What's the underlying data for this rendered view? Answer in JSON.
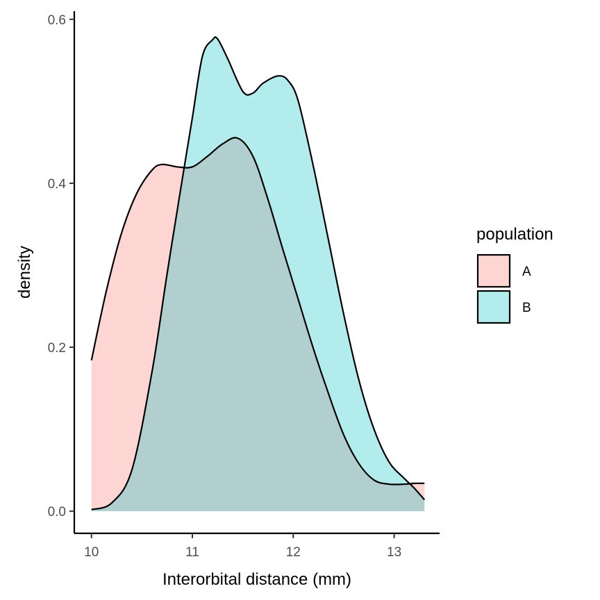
{
  "chart_data": {
    "type": "area",
    "subtype": "density",
    "title": "",
    "xlabel": "Interorbital distance (mm)",
    "ylabel": "density",
    "xlim": [
      9.83,
      13.45
    ],
    "ylim": [
      -0.027,
      0.61
    ],
    "x_ticks": [
      10,
      11,
      12,
      13
    ],
    "y_ticks": [
      0.0,
      0.2,
      0.4,
      0.6
    ],
    "x_tick_labels": [
      "10",
      "11",
      "12",
      "13"
    ],
    "y_tick_labels": [
      "0.0",
      "0.2",
      "0.4",
      "0.6"
    ],
    "grid": false,
    "legend": {
      "title": "population",
      "position": "right"
    },
    "series": [
      {
        "name": "A",
        "fill": "#f8766d",
        "fill_opacity": 0.3,
        "x": [
          10.0,
          10.15,
          10.3,
          10.45,
          10.6,
          10.7,
          10.85,
          11.0,
          11.15,
          11.3,
          11.45,
          11.6,
          11.75,
          11.9,
          12.05,
          12.2,
          12.35,
          12.5,
          12.65,
          12.8,
          12.95,
          13.1,
          13.2,
          13.3
        ],
        "y": [
          0.184,
          0.27,
          0.34,
          0.388,
          0.416,
          0.423,
          0.42,
          0.42,
          0.433,
          0.448,
          0.455,
          0.433,
          0.38,
          0.318,
          0.258,
          0.198,
          0.143,
          0.093,
          0.058,
          0.038,
          0.033,
          0.033,
          0.034,
          0.034
        ]
      },
      {
        "name": "B",
        "fill": "#00bfc4",
        "fill_opacity": 0.3,
        "x": [
          10.0,
          10.2,
          10.4,
          10.6,
          10.75,
          10.9,
          11.0,
          11.1,
          11.2,
          11.25,
          11.35,
          11.5,
          11.6,
          11.7,
          11.85,
          11.95,
          12.05,
          12.2,
          12.35,
          12.5,
          12.65,
          12.8,
          12.95,
          13.1,
          13.2,
          13.3
        ],
        "y": [
          0.002,
          0.01,
          0.05,
          0.17,
          0.29,
          0.405,
          0.48,
          0.555,
          0.575,
          0.576,
          0.552,
          0.512,
          0.51,
          0.522,
          0.531,
          0.525,
          0.5,
          0.42,
          0.33,
          0.24,
          0.16,
          0.1,
          0.06,
          0.04,
          0.028,
          0.014
        ]
      }
    ]
  }
}
